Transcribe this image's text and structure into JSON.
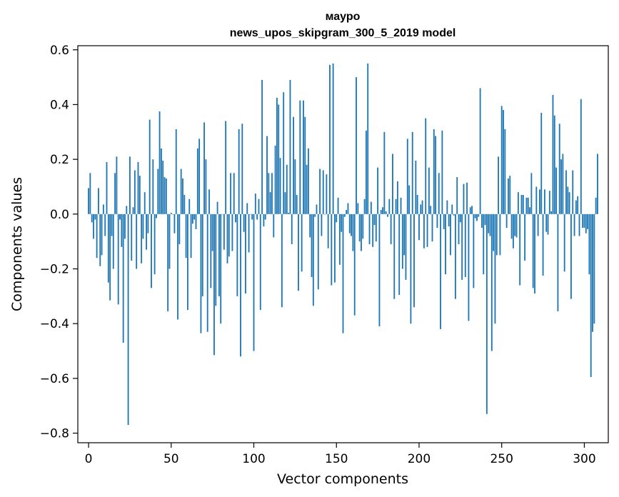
{
  "chart_data": {
    "type": "bar",
    "title_line1": "маурo",
    "title_line2": "news_upos_skipgram_300_5_2019 model",
    "xlabel": "Vector components",
    "ylabel": "Components values",
    "xlim": [
      -6.5,
      314.5
    ],
    "ylim": [
      -0.835,
      0.615
    ],
    "xticks": [
      0,
      50,
      100,
      150,
      200,
      250,
      300
    ],
    "yticks": [
      -0.8,
      -0.6,
      -0.4,
      -0.2,
      0.0,
      0.2,
      0.4,
      0.6
    ],
    "ytick_labels": [
      "−0.8",
      "−0.6",
      "−0.4",
      "−0.2",
      "0.0",
      "0.2",
      "0.4",
      "0.6"
    ],
    "bar_color": "#1f77b4",
    "x_start": 0,
    "values": [
      0.095,
      0.15,
      -0.03,
      -0.09,
      -0.02,
      -0.16,
      0.095,
      -0.19,
      -0.15,
      0.035,
      -0.08,
      0.19,
      -0.25,
      -0.315,
      -0.08,
      -0.2,
      0.15,
      0.21,
      -0.33,
      -0.02,
      -0.12,
      -0.47,
      -0.09,
      0.03,
      -0.77,
      0.21,
      -0.17,
      0.025,
      0.16,
      -0.2,
      0.19,
      0.14,
      -0.18,
      -0.09,
      0.08,
      -0.13,
      -0.07,
      0.345,
      -0.27,
      0.2,
      -0.22,
      -0.015,
      0.165,
      0.375,
      0.24,
      0.195,
      0.135,
      0.13,
      -0.355,
      -0.2,
      0.005,
      0.0,
      -0.07,
      0.31,
      -0.385,
      -0.11,
      0.165,
      0.13,
      0.07,
      -0.16,
      -0.35,
      0.055,
      -0.16,
      -0.035,
      -0.02,
      -0.055,
      0.24,
      0.275,
      -0.435,
      -0.3,
      0.335,
      0.2,
      -0.43,
      0.09,
      -0.27,
      -0.135,
      -0.515,
      -0.335,
      0.045,
      -0.3,
      -0.4,
      0.0,
      -0.13,
      0.34,
      -0.18,
      -0.155,
      0.15,
      -0.135,
      0.15,
      -0.03,
      -0.3,
      0.31,
      -0.52,
      0.33,
      -0.065,
      -0.29,
      0.04,
      -0.14,
      0.0,
      -0.02,
      -0.5,
      0.075,
      -0.02,
      0.055,
      -0.35,
      0.49,
      -0.045,
      -0.02,
      0.285,
      0.15,
      0.08,
      0.15,
      -0.085,
      0.25,
      0.425,
      0.4,
      0.205,
      -0.34,
      0.445,
      0.08,
      0.18,
      0.005,
      0.49,
      -0.11,
      0.355,
      0.2,
      0.07,
      -0.28,
      0.415,
      -0.21,
      0.415,
      0.355,
      0.18,
      0.24,
      -0.085,
      -0.23,
      -0.335,
      -0.01,
      0.035,
      -0.275,
      0.165,
      -0.08,
      0.16,
      0.0,
      0.145,
      -0.125,
      0.545,
      -0.26,
      0.55,
      -0.25,
      -0.03,
      0.06,
      -0.185,
      -0.065,
      -0.435,
      -0.01,
      0.015,
      0.04,
      -0.07,
      -0.08,
      -0.135,
      -0.37,
      0.5,
      0.04,
      -0.1,
      -0.135,
      -0.09,
      0.055,
      0.305,
      0.55,
      -0.11,
      0.045,
      -0.12,
      -0.04,
      -0.1,
      0.17,
      -0.41,
      0.015,
      0.025,
      0.3,
      0.01,
      -0.01,
      0.055,
      -0.11,
      0.22,
      -0.31,
      0.055,
      0.12,
      -0.295,
      0.06,
      -0.2,
      -0.15,
      -0.24,
      0.275,
      0.105,
      -0.4,
      0.3,
      -0.34,
      0.195,
      0.07,
      -0.095,
      0.035,
      0.05,
      -0.125,
      0.35,
      -0.12,
      0.17,
      0.03,
      -0.1,
      0.31,
      0.285,
      -0.05,
      0.15,
      -0.42,
      0.305,
      -0.055,
      -0.22,
      0.05,
      -0.045,
      -0.15,
      0.035,
      -0.005,
      -0.31,
      0.135,
      -0.11,
      -0.03,
      -0.24,
      0.11,
      -0.23,
      0.115,
      -0.39,
      0.025,
      0.03,
      -0.27,
      -0.015,
      -0.025,
      -0.01,
      0.46,
      -0.05,
      -0.22,
      -0.04,
      -0.73,
      -0.07,
      -0.08,
      -0.5,
      -0.135,
      -0.4,
      -0.15,
      0.21,
      -0.15,
      0.395,
      0.38,
      0.31,
      -0.05,
      0.13,
      0.14,
      -0.09,
      -0.125,
      -0.08,
      -0.085,
      0.08,
      -0.26,
      0.07,
      0.07,
      -0.17,
      0.06,
      0.06,
      0.025,
      0.15,
      -0.27,
      -0.29,
      0.1,
      -0.08,
      0.09,
      0.37,
      -0.225,
      0.09,
      -0.065,
      -0.075,
      0.085,
      0.01,
      0.435,
      0.36,
      0.17,
      -0.355,
      0.33,
      0.2,
      0.22,
      -0.21,
      0.16,
      0.1,
      0.08,
      -0.31,
      0.16,
      -0.08,
      0.05,
      0.065,
      -0.08,
      0.42,
      -0.05,
      -0.05,
      -0.07,
      -0.055,
      -0.22,
      -0.595,
      -0.43,
      -0.4,
      0.06,
      0.22
    ]
  }
}
